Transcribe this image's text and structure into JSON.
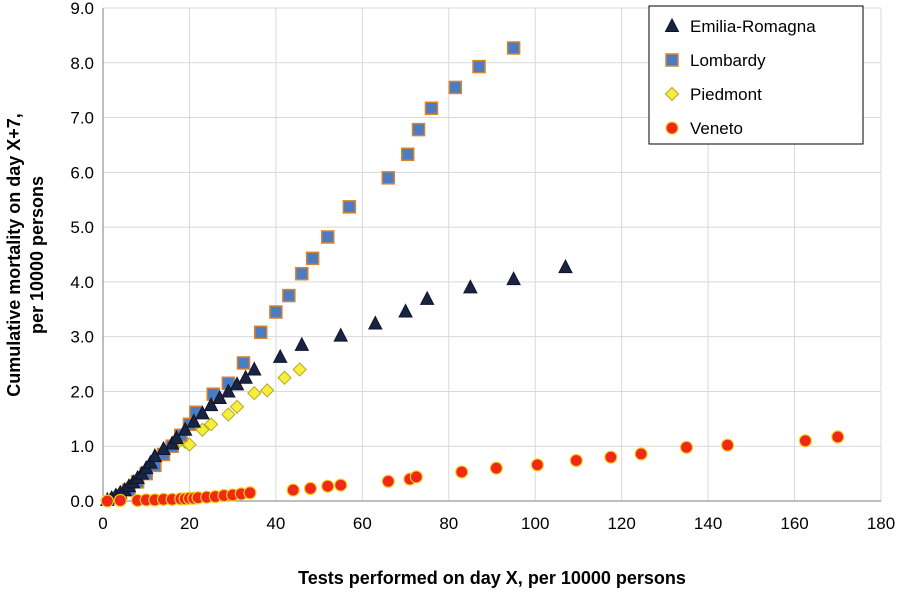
{
  "chart_data": {
    "type": "scatter",
    "title": "",
    "xlabel": "Tests performed on day X, per 10000 persons",
    "ylabel_line1": "Cumulative mortality on day X+7,",
    "ylabel_line2": "per 10000 persons",
    "xlim": [
      0,
      180
    ],
    "ylim": [
      0,
      9
    ],
    "xticks": [
      0,
      20,
      40,
      60,
      80,
      100,
      120,
      140,
      160,
      180
    ],
    "yticks": [
      0,
      1,
      2,
      3,
      4,
      5,
      6,
      7,
      8,
      9
    ],
    "xtick_labels": [
      "0",
      "20",
      "40",
      "60",
      "80",
      "100",
      "120",
      "140",
      "160",
      "180"
    ],
    "ytick_labels": [
      "0.0",
      "1.0",
      "2.0",
      "3.0",
      "4.0",
      "5.0",
      "6.0",
      "7.0",
      "8.0",
      "9.0"
    ],
    "grid": true,
    "legend_position": "top-right",
    "series": [
      {
        "name": "Emilia-Romagna",
        "marker": "triangle",
        "fill": "#1a2340",
        "stroke": "#0d1530",
        "points": [
          [
            1,
            0.02
          ],
          [
            2,
            0.05
          ],
          [
            3,
            0.1
          ],
          [
            4,
            0.15
          ],
          [
            5,
            0.2
          ],
          [
            6,
            0.27
          ],
          [
            7,
            0.34
          ],
          [
            8,
            0.42
          ],
          [
            9,
            0.5
          ],
          [
            10,
            0.6
          ],
          [
            11,
            0.7
          ],
          [
            12,
            0.82
          ],
          [
            14,
            0.95
          ],
          [
            16,
            1.05
          ],
          [
            17,
            1.15
          ],
          [
            19,
            1.3
          ],
          [
            21,
            1.45
          ],
          [
            23,
            1.6
          ],
          [
            25,
            1.75
          ],
          [
            27,
            1.88
          ],
          [
            29,
            2.0
          ],
          [
            31,
            2.13
          ],
          [
            33,
            2.25
          ],
          [
            35,
            2.4
          ],
          [
            41,
            2.63
          ],
          [
            46,
            2.85
          ],
          [
            55,
            3.02
          ],
          [
            63,
            3.24
          ],
          [
            70,
            3.46
          ],
          [
            75,
            3.69
          ],
          [
            85,
            3.9
          ],
          [
            95,
            4.05
          ],
          [
            107,
            4.27
          ]
        ]
      },
      {
        "name": "Lombardy",
        "marker": "square",
        "fill": "#4a7cc4",
        "stroke": "#d9822b",
        "points": [
          [
            6,
            0.2
          ],
          [
            8,
            0.35
          ],
          [
            10,
            0.5
          ],
          [
            12,
            0.65
          ],
          [
            14,
            0.85
          ],
          [
            16,
            1.0
          ],
          [
            18,
            1.2
          ],
          [
            20,
            1.4
          ],
          [
            21.5,
            1.62
          ],
          [
            25.5,
            1.95
          ],
          [
            29,
            2.15
          ],
          [
            32.5,
            2.52
          ],
          [
            36.5,
            3.08
          ],
          [
            40,
            3.45
          ],
          [
            43,
            3.75
          ],
          [
            46,
            4.15
          ],
          [
            48.5,
            4.43
          ],
          [
            52,
            4.82
          ],
          [
            57,
            5.37
          ],
          [
            66,
            5.9
          ],
          [
            70.5,
            6.33
          ],
          [
            73,
            6.78
          ],
          [
            76,
            7.17
          ],
          [
            81.5,
            7.55
          ],
          [
            87,
            7.93
          ],
          [
            95,
            8.27
          ]
        ]
      },
      {
        "name": "Piedmont",
        "marker": "diamond",
        "fill": "#f5ee3a",
        "stroke": "#b5a82a",
        "points": [
          [
            1,
            0.02
          ],
          [
            2,
            0.05
          ],
          [
            3,
            0.1
          ],
          [
            4,
            0.14
          ],
          [
            5,
            0.2
          ],
          [
            6,
            0.26
          ],
          [
            7,
            0.33
          ],
          [
            8,
            0.4
          ],
          [
            9,
            0.48
          ],
          [
            10,
            0.56
          ],
          [
            11,
            0.64
          ],
          [
            12,
            0.72
          ],
          [
            13,
            0.8
          ],
          [
            14,
            0.88
          ],
          [
            15,
            0.95
          ],
          [
            17,
            1.05
          ],
          [
            19,
            1.08
          ],
          [
            20,
            1.03
          ],
          [
            23,
            1.3
          ],
          [
            25,
            1.4
          ],
          [
            29,
            1.58
          ],
          [
            31,
            1.72
          ],
          [
            35,
            1.97
          ],
          [
            38,
            2.02
          ],
          [
            42,
            2.25
          ],
          [
            45.5,
            2.4
          ]
        ]
      },
      {
        "name": "Veneto",
        "marker": "circle",
        "fill": "#f02818",
        "stroke": "#f5d020",
        "points": [
          [
            1,
            0.0
          ],
          [
            4,
            0.01
          ],
          [
            8,
            0.01
          ],
          [
            10,
            0.02
          ],
          [
            12,
            0.02
          ],
          [
            14,
            0.03
          ],
          [
            16,
            0.03
          ],
          [
            18,
            0.04
          ],
          [
            19,
            0.04
          ],
          [
            20,
            0.05
          ],
          [
            21,
            0.05
          ],
          [
            22,
            0.06
          ],
          [
            24,
            0.07
          ],
          [
            26,
            0.08
          ],
          [
            28,
            0.1
          ],
          [
            30,
            0.11
          ],
          [
            32,
            0.13
          ],
          [
            34,
            0.15
          ],
          [
            44,
            0.2
          ],
          [
            48,
            0.23
          ],
          [
            52,
            0.27
          ],
          [
            55,
            0.29
          ],
          [
            66,
            0.36
          ],
          [
            71,
            0.4
          ],
          [
            72.5,
            0.44
          ],
          [
            83,
            0.53
          ],
          [
            91,
            0.6
          ],
          [
            100.5,
            0.66
          ],
          [
            109.5,
            0.74
          ],
          [
            117.5,
            0.8
          ],
          [
            124.5,
            0.86
          ],
          [
            135,
            0.98
          ],
          [
            144.5,
            1.02
          ],
          [
            162.5,
            1.1
          ],
          [
            170,
            1.17
          ]
        ]
      }
    ]
  }
}
